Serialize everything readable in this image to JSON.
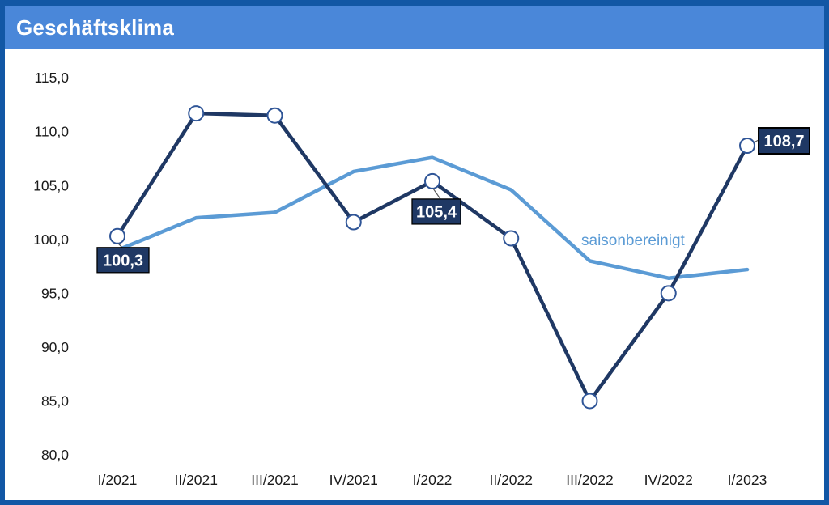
{
  "header": {
    "title": "Geschäftsklima"
  },
  "colors": {
    "frame": "#1257A5",
    "header_bg": "#4A87D9",
    "header_text": "#ffffff",
    "series_main": "#1F3864",
    "series_adjusted": "#5B9BD5",
    "marker_fill": "#ffffff",
    "marker_stroke": "#2F5597",
    "label_box_fill": "#1F3864",
    "label_box_border": "#000000",
    "label_text": "#ffffff",
    "axis_text": "#1a1a1a",
    "leader_line": "#555555"
  },
  "chart_data": {
    "type": "line",
    "title": "Geschäftsklima",
    "categories": [
      "I/2021",
      "II/2021",
      "III/2021",
      "IV/2021",
      "I/2022",
      "II/2022",
      "III/2022",
      "IV/2022",
      "I/2023"
    ],
    "series": [
      {
        "name": "Geschäftsklima",
        "color": "#1F3864",
        "markers": true,
        "values": [
          100.3,
          111.7,
          111.5,
          101.6,
          105.4,
          100.1,
          85.0,
          95.0,
          108.7
        ]
      },
      {
        "name": "saisonbereinigt",
        "color": "#5B9BD5",
        "markers": false,
        "values": [
          99.0,
          102.0,
          102.5,
          106.3,
          107.6,
          104.6,
          98.0,
          96.4,
          97.2
        ]
      }
    ],
    "ylim": [
      80,
      115
    ],
    "yticks": [
      {
        "v": 115,
        "label": "115,0"
      },
      {
        "v": 110,
        "label": "110,0"
      },
      {
        "v": 105,
        "label": "105,0"
      },
      {
        "v": 100,
        "label": "100,0"
      },
      {
        "v": 95,
        "label": "95,0"
      },
      {
        "v": 90,
        "label": "90,0"
      },
      {
        "v": 85,
        "label": "85,0"
      },
      {
        "v": 80,
        "label": "80,0"
      }
    ],
    "grid": false,
    "legend_position": "inline",
    "series_label": {
      "text": "saisonbereinigt",
      "color": "#5B9BD5"
    },
    "annotations": [
      {
        "series": 0,
        "index": 0,
        "label": "100,3"
      },
      {
        "series": 0,
        "index": 4,
        "label": "105,4"
      },
      {
        "series": 0,
        "index": 8,
        "label": "108,7"
      }
    ]
  }
}
